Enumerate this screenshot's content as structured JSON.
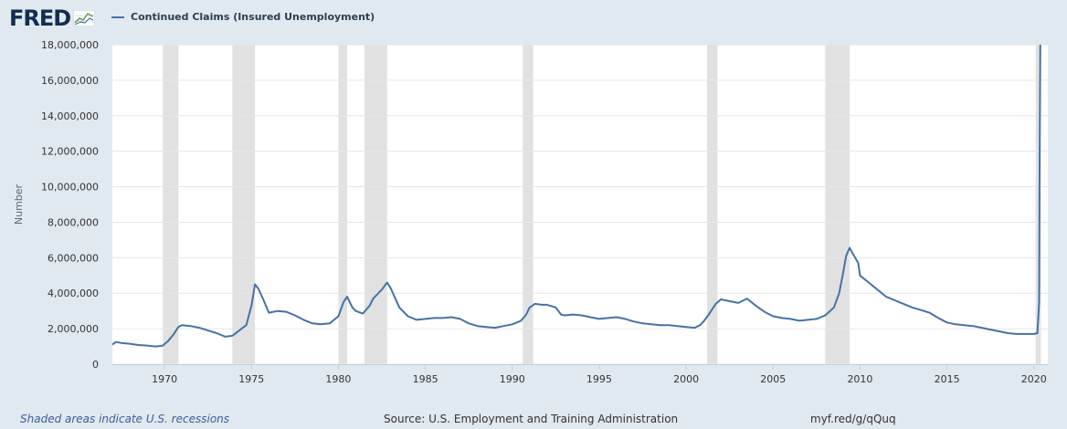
{
  "logo": {
    "text": "FRED"
  },
  "legend": {
    "label": "Continued Claims (Insured Unemployment)",
    "color": "#4572a7"
  },
  "footer": {
    "note": "Shaded areas indicate U.S. recessions",
    "source": "Source: U.S. Employment and Training Administration",
    "link": "myf.red/g/qQuq"
  },
  "chart_data": {
    "type": "line",
    "title": "",
    "xlabel": "",
    "ylabel": "Number",
    "xlim": [
      1967.0,
      2020.8
    ],
    "ylim": [
      0,
      18000000
    ],
    "grid": true,
    "legend_position": "top-left",
    "x_ticks": [
      {
        "value": 1970,
        "label": "1970"
      },
      {
        "value": 1975,
        "label": "1975"
      },
      {
        "value": 1980,
        "label": "1980"
      },
      {
        "value": 1985,
        "label": "1985"
      },
      {
        "value": 1990,
        "label": "1990"
      },
      {
        "value": 1995,
        "label": "1995"
      },
      {
        "value": 2000,
        "label": "2000"
      },
      {
        "value": 2005,
        "label": "2005"
      },
      {
        "value": 2010,
        "label": "2010"
      },
      {
        "value": 2015,
        "label": "2015"
      },
      {
        "value": 2020,
        "label": "2020"
      }
    ],
    "y_ticks": [
      {
        "value": 0,
        "label": "0"
      },
      {
        "value": 2000000,
        "label": "2,000,000"
      },
      {
        "value": 4000000,
        "label": "4,000,000"
      },
      {
        "value": 6000000,
        "label": "6,000,000"
      },
      {
        "value": 8000000,
        "label": "8,000,000"
      },
      {
        "value": 10000000,
        "label": "10,000,000"
      },
      {
        "value": 12000000,
        "label": "12,000,000"
      },
      {
        "value": 14000000,
        "label": "14,000,000"
      },
      {
        "value": 16000000,
        "label": "16,000,000"
      },
      {
        "value": 18000000,
        "label": "18,000,000"
      }
    ],
    "recessions": [
      [
        1969.9,
        1970.8
      ],
      [
        1973.9,
        1975.2
      ],
      [
        1980.0,
        1980.5
      ],
      [
        1981.5,
        1982.8
      ],
      [
        1990.6,
        1991.2
      ],
      [
        2001.2,
        2001.8
      ],
      [
        2008.0,
        2009.4
      ],
      [
        2020.1,
        2020.4
      ]
    ],
    "series": [
      {
        "name": "Continued Claims (Insured Unemployment)",
        "color": "#4572a7",
        "points": [
          [
            1967.0,
            1100000
          ],
          [
            1967.2,
            1250000
          ],
          [
            1967.5,
            1200000
          ],
          [
            1968.0,
            1150000
          ],
          [
            1968.5,
            1080000
          ],
          [
            1969.0,
            1050000
          ],
          [
            1969.5,
            1000000
          ],
          [
            1969.9,
            1050000
          ],
          [
            1970.2,
            1300000
          ],
          [
            1970.5,
            1650000
          ],
          [
            1970.8,
            2100000
          ],
          [
            1971.0,
            2200000
          ],
          [
            1971.5,
            2150000
          ],
          [
            1972.0,
            2050000
          ],
          [
            1972.5,
            1900000
          ],
          [
            1973.0,
            1750000
          ],
          [
            1973.5,
            1550000
          ],
          [
            1973.9,
            1600000
          ],
          [
            1974.3,
            1900000
          ],
          [
            1974.7,
            2200000
          ],
          [
            1975.0,
            3300000
          ],
          [
            1975.2,
            4500000
          ],
          [
            1975.4,
            4250000
          ],
          [
            1975.7,
            3600000
          ],
          [
            1976.0,
            2900000
          ],
          [
            1976.5,
            3000000
          ],
          [
            1977.0,
            2950000
          ],
          [
            1977.5,
            2750000
          ],
          [
            1978.0,
            2500000
          ],
          [
            1978.5,
            2300000
          ],
          [
            1979.0,
            2250000
          ],
          [
            1979.5,
            2300000
          ],
          [
            1980.0,
            2700000
          ],
          [
            1980.3,
            3500000
          ],
          [
            1980.5,
            3800000
          ],
          [
            1980.8,
            3200000
          ],
          [
            1981.0,
            3000000
          ],
          [
            1981.4,
            2850000
          ],
          [
            1981.8,
            3300000
          ],
          [
            1982.0,
            3700000
          ],
          [
            1982.5,
            4200000
          ],
          [
            1982.8,
            4600000
          ],
          [
            1983.0,
            4300000
          ],
          [
            1983.5,
            3200000
          ],
          [
            1984.0,
            2700000
          ],
          [
            1984.5,
            2500000
          ],
          [
            1985.0,
            2550000
          ],
          [
            1985.5,
            2600000
          ],
          [
            1986.0,
            2600000
          ],
          [
            1986.5,
            2650000
          ],
          [
            1987.0,
            2550000
          ],
          [
            1987.5,
            2300000
          ],
          [
            1988.0,
            2150000
          ],
          [
            1988.5,
            2100000
          ],
          [
            1989.0,
            2050000
          ],
          [
            1989.5,
            2150000
          ],
          [
            1990.0,
            2250000
          ],
          [
            1990.5,
            2450000
          ],
          [
            1990.8,
            2800000
          ],
          [
            1991.0,
            3200000
          ],
          [
            1991.3,
            3400000
          ],
          [
            1991.7,
            3350000
          ],
          [
            1992.0,
            3350000
          ],
          [
            1992.5,
            3200000
          ],
          [
            1992.8,
            2800000
          ],
          [
            1993.0,
            2750000
          ],
          [
            1993.5,
            2800000
          ],
          [
            1994.0,
            2750000
          ],
          [
            1994.5,
            2650000
          ],
          [
            1995.0,
            2550000
          ],
          [
            1995.5,
            2600000
          ],
          [
            1996.0,
            2650000
          ],
          [
            1996.5,
            2550000
          ],
          [
            1997.0,
            2400000
          ],
          [
            1997.5,
            2300000
          ],
          [
            1998.0,
            2250000
          ],
          [
            1998.5,
            2200000
          ],
          [
            1999.0,
            2200000
          ],
          [
            1999.5,
            2150000
          ],
          [
            2000.0,
            2100000
          ],
          [
            2000.5,
            2050000
          ],
          [
            2000.8,
            2200000
          ],
          [
            2001.0,
            2400000
          ],
          [
            2001.3,
            2800000
          ],
          [
            2001.7,
            3400000
          ],
          [
            2002.0,
            3650000
          ],
          [
            2002.5,
            3550000
          ],
          [
            2003.0,
            3450000
          ],
          [
            2003.5,
            3700000
          ],
          [
            2004.0,
            3300000
          ],
          [
            2004.5,
            2950000
          ],
          [
            2005.0,
            2700000
          ],
          [
            2005.5,
            2600000
          ],
          [
            2006.0,
            2550000
          ],
          [
            2006.5,
            2450000
          ],
          [
            2007.0,
            2500000
          ],
          [
            2007.5,
            2550000
          ],
          [
            2008.0,
            2750000
          ],
          [
            2008.5,
            3200000
          ],
          [
            2008.8,
            4000000
          ],
          [
            2009.0,
            5000000
          ],
          [
            2009.2,
            6100000
          ],
          [
            2009.4,
            6550000
          ],
          [
            2009.6,
            6200000
          ],
          [
            2009.9,
            5700000
          ],
          [
            2010.0,
            5000000
          ],
          [
            2010.5,
            4600000
          ],
          [
            2011.0,
            4200000
          ],
          [
            2011.5,
            3800000
          ],
          [
            2012.0,
            3600000
          ],
          [
            2012.5,
            3400000
          ],
          [
            2013.0,
            3200000
          ],
          [
            2013.5,
            3050000
          ],
          [
            2014.0,
            2900000
          ],
          [
            2014.5,
            2600000
          ],
          [
            2015.0,
            2350000
          ],
          [
            2015.5,
            2250000
          ],
          [
            2016.0,
            2200000
          ],
          [
            2016.5,
            2150000
          ],
          [
            2017.0,
            2050000
          ],
          [
            2017.5,
            1950000
          ],
          [
            2018.0,
            1850000
          ],
          [
            2018.5,
            1750000
          ],
          [
            2019.0,
            1700000
          ],
          [
            2019.5,
            1700000
          ],
          [
            2020.0,
            1700000
          ],
          [
            2020.2,
            1750000
          ],
          [
            2020.3,
            3500000
          ],
          [
            2020.33,
            12000000
          ],
          [
            2020.37,
            18000000
          ]
        ]
      }
    ]
  }
}
